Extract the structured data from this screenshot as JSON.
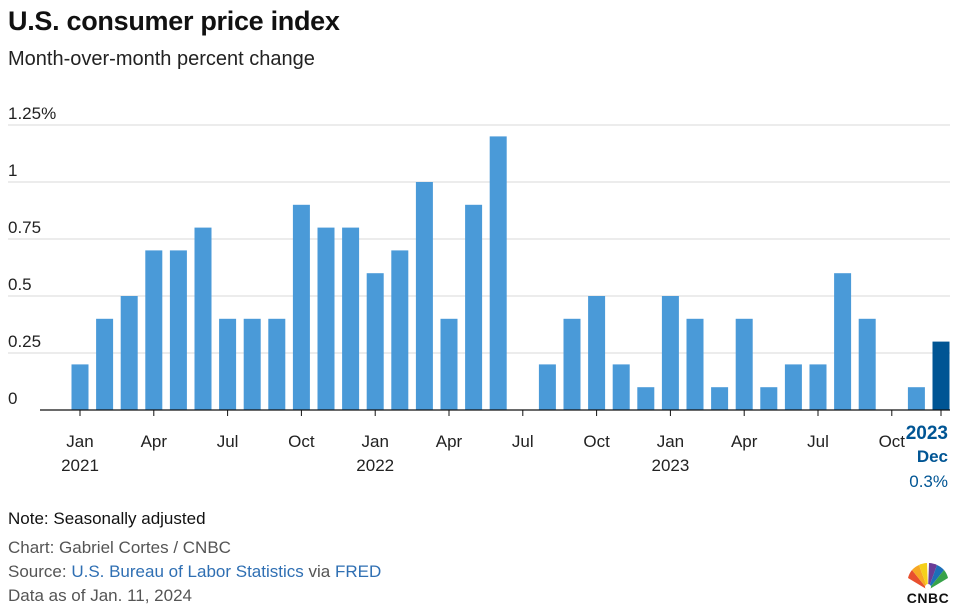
{
  "header": {
    "title": "U.S. consumer price index",
    "subtitle": "Month-over-month percent change"
  },
  "chart_data": {
    "type": "bar",
    "title": "U.S. consumer price index",
    "subtitle": "Month-over-month percent change",
    "unit": "%",
    "ylim": [
      0,
      1.25
    ],
    "yticks": [
      {
        "value": 0,
        "label": "0"
      },
      {
        "value": 0.25,
        "label": "0.25"
      },
      {
        "value": 0.5,
        "label": "0.5"
      },
      {
        "value": 0.75,
        "label": "0.75"
      },
      {
        "value": 1,
        "label": "1"
      },
      {
        "value": 1.25,
        "label": "1.25%"
      }
    ],
    "grid": true,
    "categories": [
      "Jan 2021",
      "Feb 2021",
      "Mar 2021",
      "Apr 2021",
      "May 2021",
      "Jun 2021",
      "Jul 2021",
      "Aug 2021",
      "Sep 2021",
      "Oct 2021",
      "Nov 2021",
      "Dec 2021",
      "Jan 2022",
      "Feb 2022",
      "Mar 2022",
      "Apr 2022",
      "May 2022",
      "Jun 2022",
      "Jul 2022",
      "Aug 2022",
      "Sep 2022",
      "Oct 2022",
      "Nov 2022",
      "Dec 2022",
      "Jan 2023",
      "Feb 2023",
      "Mar 2023",
      "Apr 2023",
      "May 2023",
      "Jun 2023",
      "Jul 2023",
      "Aug 2023",
      "Sep 2023",
      "Oct 2023",
      "Nov 2023",
      "Dec 2023"
    ],
    "values": [
      0.2,
      0.4,
      0.5,
      0.7,
      0.7,
      0.8,
      0.4,
      0.4,
      0.4,
      0.9,
      0.8,
      0.8,
      0.6,
      0.7,
      1.0,
      0.4,
      0.9,
      1.2,
      0.0,
      0.2,
      0.4,
      0.5,
      0.2,
      0.1,
      0.5,
      0.4,
      0.1,
      0.4,
      0.1,
      0.2,
      0.2,
      0.6,
      0.4,
      0.0,
      0.1,
      0.3
    ],
    "xticks": [
      {
        "index": 0,
        "label": "Jan",
        "year": "2021"
      },
      {
        "index": 3,
        "label": "Apr"
      },
      {
        "index": 6,
        "label": "Jul"
      },
      {
        "index": 9,
        "label": "Oct"
      },
      {
        "index": 12,
        "label": "Jan",
        "year": "2022"
      },
      {
        "index": 15,
        "label": "Apr"
      },
      {
        "index": 18,
        "label": "Jul"
      },
      {
        "index": 21,
        "label": "Oct"
      },
      {
        "index": 24,
        "label": "Jan",
        "year": "2023"
      },
      {
        "index": 27,
        "label": "Apr"
      },
      {
        "index": 30,
        "label": "Jul"
      },
      {
        "index": 33,
        "label": "Oct"
      }
    ],
    "highlight": {
      "index": 35,
      "year": "2023",
      "month": "Dec",
      "value_label": "0.3%"
    },
    "colors": {
      "bar": "#4a9ad8",
      "highlight": "#005594",
      "grid": "#d9d9d9",
      "axis": "#111111"
    }
  },
  "footer": {
    "note": "Note: Seasonally adjusted",
    "credit": "Chart: Gabriel Cortes / CNBC",
    "source_prefix": "Source: ",
    "source_link1": "U.S. Bureau of Labor Statistics",
    "source_mid": " via ",
    "source_link2": "FRED",
    "as_of": "Data as of Jan. 11, 2024"
  },
  "logo": {
    "text": "CNBC",
    "icon": "peacock-icon"
  }
}
